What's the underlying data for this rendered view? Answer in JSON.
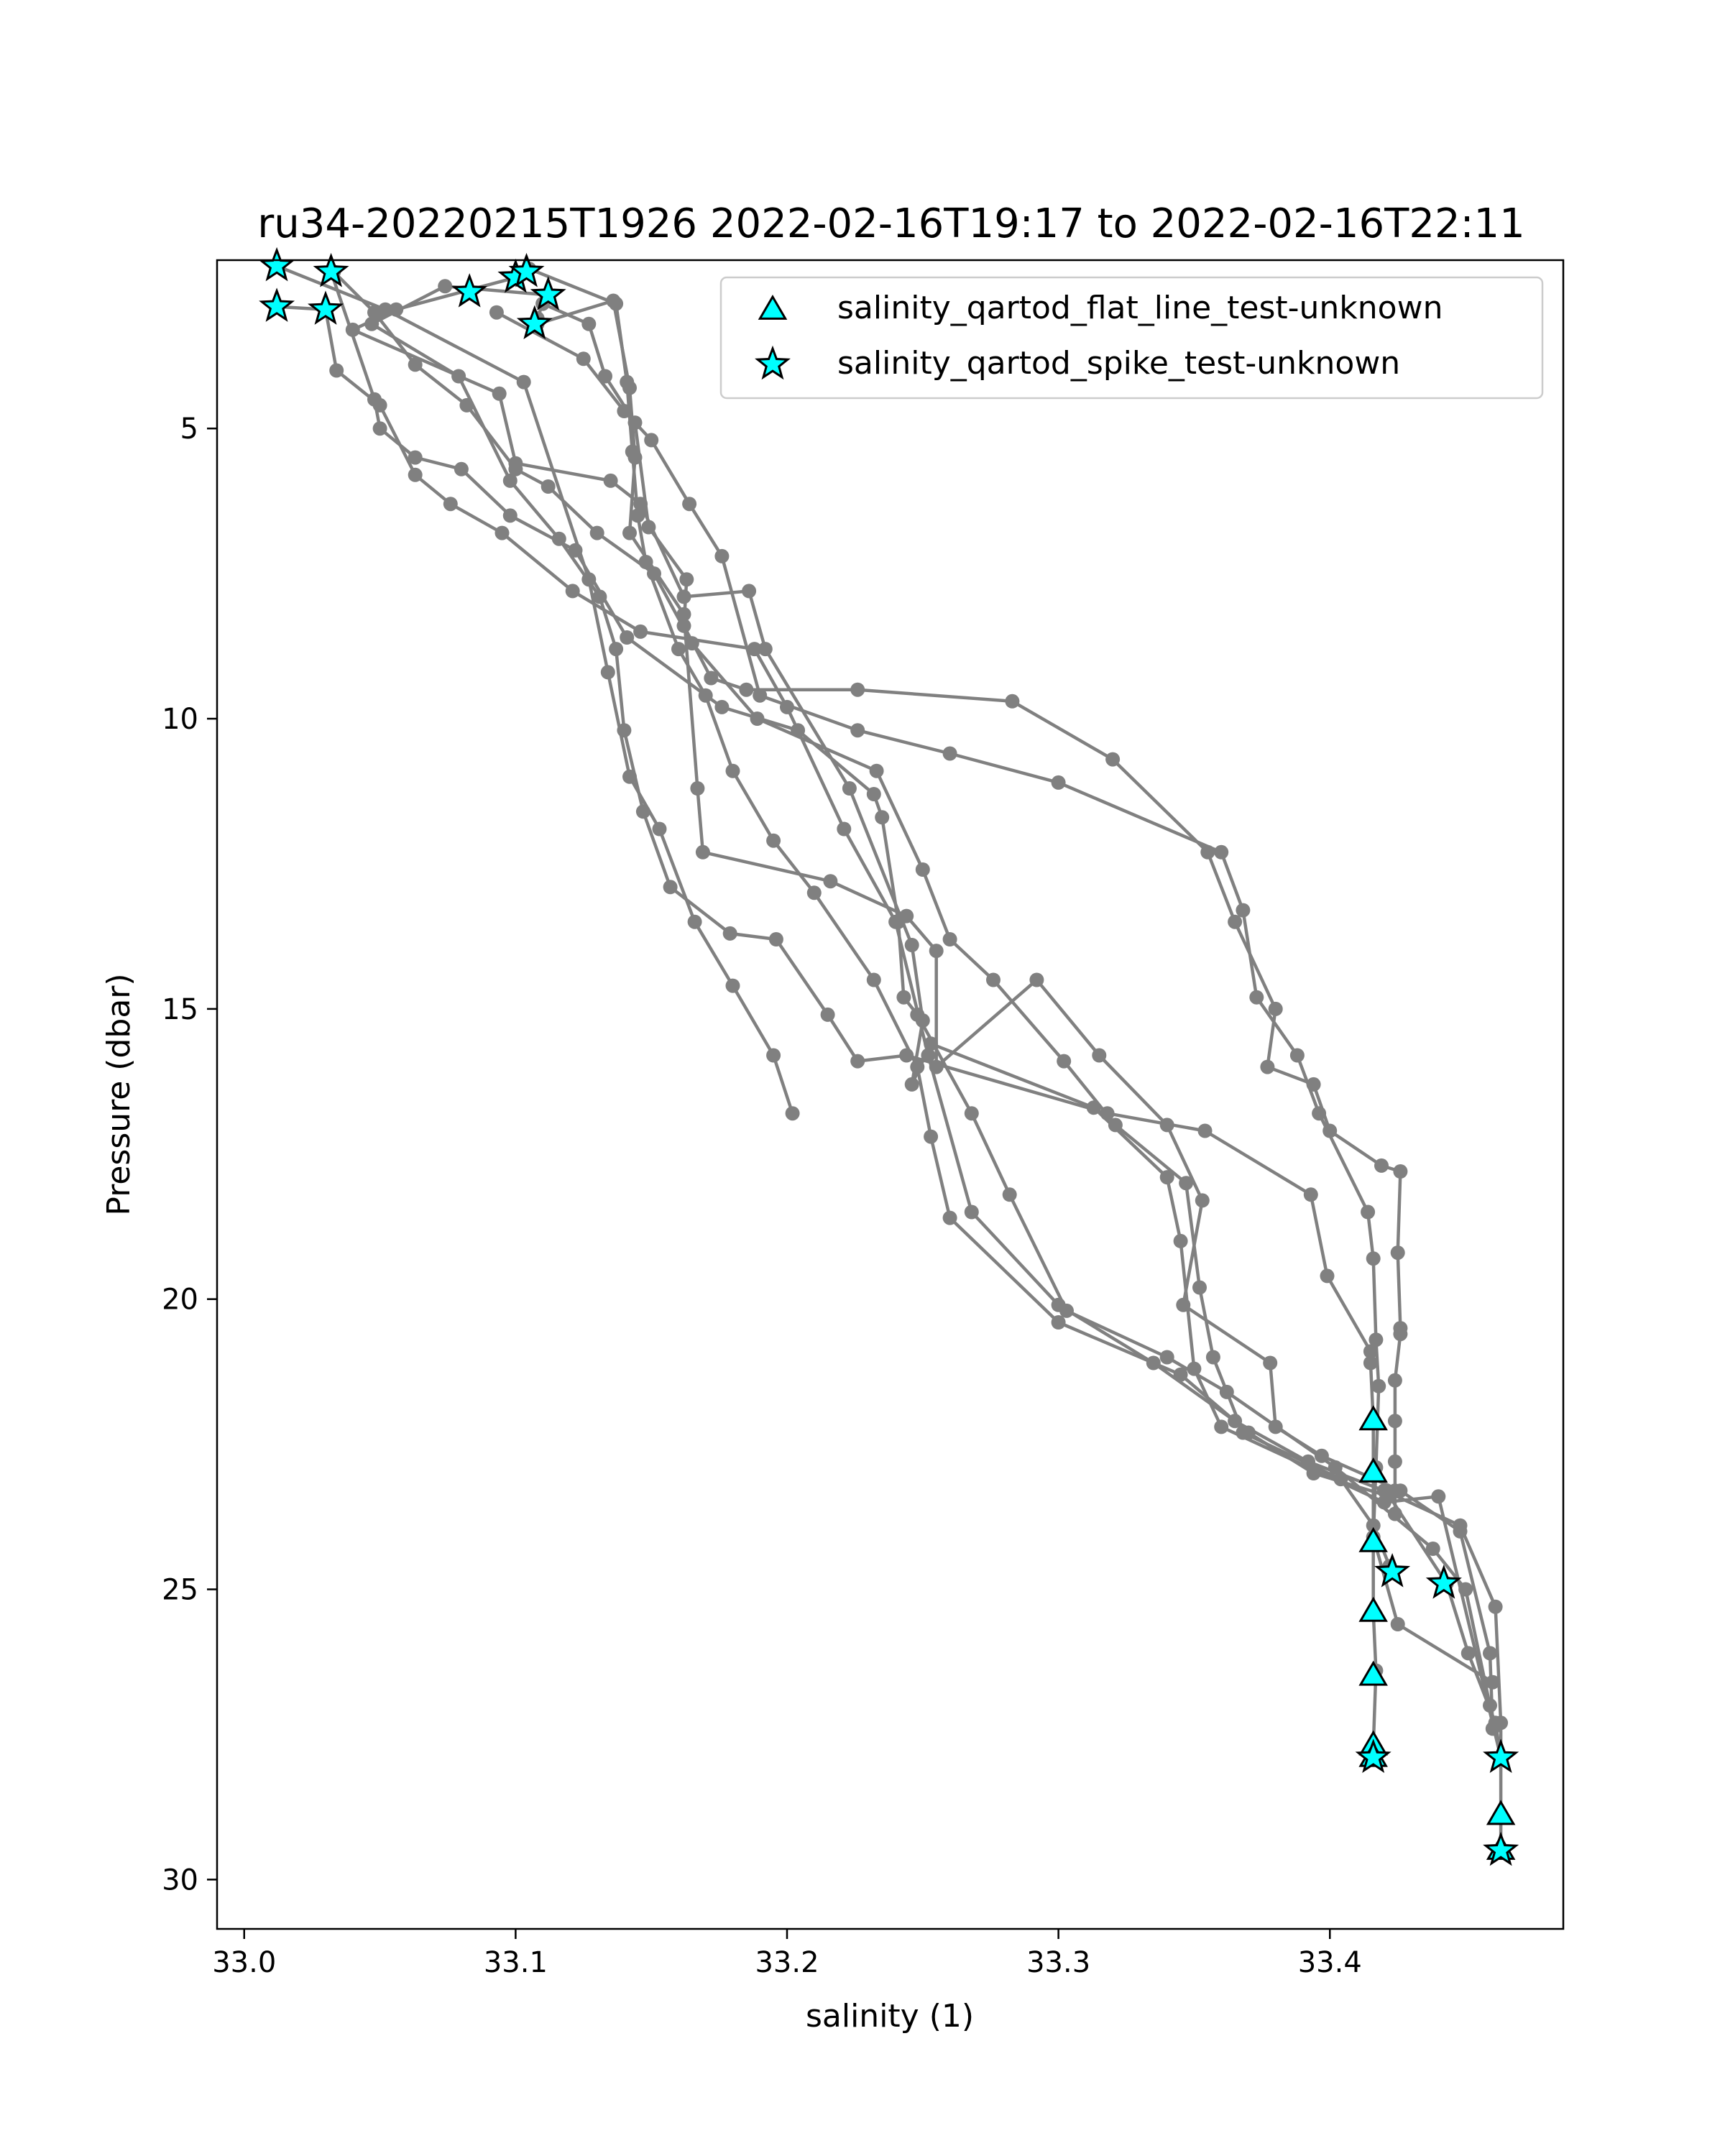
{
  "chart_data": {
    "type": "line",
    "title": "ru34-20220215T1926 2022-02-16T19:17 to 2022-02-16T22:11",
    "xlabel": "salinity (1)",
    "ylabel": "Pressure (dbar)",
    "xlim": [
      32.99,
      33.486
    ],
    "ylim": [
      30.85,
      2.1
    ],
    "y_inverted": true,
    "xticks": [
      33.0,
      33.1,
      33.2,
      33.3,
      33.4
    ],
    "xtick_labels": [
      "33.0",
      "33.1",
      "33.2",
      "33.3",
      "33.4"
    ],
    "yticks": [
      5,
      10,
      15,
      20,
      25,
      30
    ],
    "ytick_labels": [
      "5",
      "10",
      "15",
      "20",
      "25",
      "30"
    ],
    "grid": false,
    "legend_placement": "top-right",
    "colors": {
      "profile": "#808080",
      "flag_fill": "#00ffff",
      "flag_edge": "#000000"
    },
    "profiles": [
      {
        "points": [
          [
            33.012,
            2.2
          ],
          [
            33.052,
            2.95
          ],
          [
            33.103,
            4.2
          ],
          [
            33.127,
            7.6
          ],
          [
            33.134,
            9.2
          ],
          [
            33.142,
            11.0
          ],
          [
            33.153,
            11.9
          ],
          [
            33.166,
            13.5
          ],
          [
            33.18,
            14.6
          ],
          [
            33.195,
            15.8
          ],
          [
            33.202,
            16.8
          ]
        ]
      },
      {
        "points": [
          [
            33.105,
            2.25
          ],
          [
            33.137,
            2.85
          ],
          [
            33.141,
            4.2
          ],
          [
            33.143,
            5.4
          ],
          [
            33.145,
            6.5
          ],
          [
            33.148,
            7.3
          ],
          [
            33.16,
            8.8
          ],
          [
            33.17,
            9.6
          ],
          [
            33.18,
            10.9
          ],
          [
            33.195,
            12.1
          ],
          [
            33.21,
            13.0
          ],
          [
            33.232,
            14.5
          ],
          [
            33.248,
            16.0
          ],
          [
            33.253,
            17.2
          ],
          [
            33.26,
            18.6
          ],
          [
            33.3,
            20.4
          ],
          [
            33.345,
            21.3
          ],
          [
            33.37,
            22.3
          ],
          [
            33.394,
            23.0
          ],
          [
            33.422,
            23.4
          ],
          [
            33.443,
            24.9
          ],
          [
            33.451,
            26.1
          ],
          [
            33.461,
            27.3
          ],
          [
            33.463,
            27.9
          ]
        ]
      },
      {
        "points": [
          [
            33.032,
            2.3
          ],
          [
            33.048,
            4.5
          ],
          [
            33.05,
            5.0
          ],
          [
            33.063,
            5.5
          ],
          [
            33.08,
            5.7
          ],
          [
            33.098,
            6.5
          ],
          [
            33.122,
            7.1
          ],
          [
            33.141,
            8.6
          ],
          [
            33.176,
            9.8
          ],
          [
            33.204,
            10.2
          ],
          [
            33.232,
            11.3
          ],
          [
            33.235,
            11.7
          ],
          [
            33.241,
            13.5
          ],
          [
            33.243,
            14.8
          ],
          [
            33.248,
            15.1
          ],
          [
            33.268,
            16.8
          ],
          [
            33.282,
            18.2
          ],
          [
            33.303,
            20.2
          ],
          [
            33.34,
            21.0
          ],
          [
            33.362,
            21.6
          ],
          [
            33.402,
            22.9
          ],
          [
            33.438,
            24.3
          ],
          [
            33.45,
            25.0
          ],
          [
            33.459,
            27.0
          ]
        ]
      },
      {
        "points": [
          [
            33.012,
            2.9
          ],
          [
            33.03,
            2.95
          ],
          [
            33.034,
            4.0
          ],
          [
            33.05,
            4.6
          ],
          [
            33.063,
            5.8
          ],
          [
            33.076,
            6.3
          ],
          [
            33.095,
            6.8
          ],
          [
            33.121,
            7.8
          ],
          [
            33.146,
            8.5
          ],
          [
            33.188,
            8.8
          ],
          [
            33.2,
            9.8
          ],
          [
            33.221,
            11.9
          ],
          [
            33.24,
            13.5
          ],
          [
            33.252,
            15.8
          ],
          [
            33.268,
            18.5
          ],
          [
            33.3,
            20.1
          ],
          [
            33.335,
            21.1
          ],
          [
            33.365,
            22.1
          ],
          [
            33.392,
            22.8
          ],
          [
            33.42,
            23.3
          ],
          [
            33.448,
            23.9
          ],
          [
            33.461,
            25.3
          ],
          [
            33.463,
            27.3
          ],
          [
            33.463,
            28.9
          ],
          [
            33.463,
            29.5
          ]
        ]
      },
      {
        "points": [
          [
            33.033,
            2.3
          ],
          [
            33.048,
            3.0
          ],
          [
            33.063,
            3.9
          ],
          [
            33.082,
            4.6
          ],
          [
            33.1,
            5.7
          ],
          [
            33.112,
            6.0
          ],
          [
            33.13,
            6.8
          ],
          [
            33.151,
            7.5
          ],
          [
            33.165,
            8.7
          ],
          [
            33.189,
            10.0
          ],
          [
            33.233,
            10.9
          ],
          [
            33.25,
            12.6
          ],
          [
            33.26,
            13.8
          ],
          [
            33.276,
            14.5
          ],
          [
            33.302,
            15.9
          ],
          [
            33.321,
            17.0
          ],
          [
            33.347,
            18.0
          ],
          [
            33.352,
            19.8
          ],
          [
            33.357,
            21.0
          ],
          [
            33.368,
            22.3
          ],
          [
            33.404,
            23.1
          ],
          [
            33.416,
            23.9
          ],
          [
            33.422,
            24.6
          ]
        ]
      },
      {
        "points": [
          [
            33.1,
            2.4
          ],
          [
            33.056,
            2.95
          ],
          [
            33.04,
            3.3
          ],
          [
            33.094,
            4.4
          ],
          [
            33.1,
            5.6
          ],
          [
            33.135,
            5.9
          ],
          [
            33.146,
            6.3
          ],
          [
            33.162,
            7.9
          ],
          [
            33.186,
            7.8
          ],
          [
            33.192,
            8.8
          ],
          [
            33.223,
            11.2
          ],
          [
            33.246,
            13.9
          ],
          [
            33.25,
            15.2
          ],
          [
            33.246,
            16.3
          ],
          [
            33.253,
            15.6
          ],
          [
            33.313,
            16.7
          ],
          [
            33.34,
            17.9
          ],
          [
            33.345,
            19.0
          ],
          [
            33.35,
            21.2
          ],
          [
            33.36,
            22.2
          ],
          [
            33.42,
            23.5
          ],
          [
            33.44,
            23.4
          ],
          [
            33.463,
            27.9
          ]
        ]
      },
      {
        "points": [
          [
            33.112,
            2.7
          ],
          [
            33.074,
            2.55
          ],
          [
            33.047,
            3.2
          ],
          [
            33.079,
            4.1
          ],
          [
            33.098,
            5.9
          ],
          [
            33.116,
            6.9
          ],
          [
            33.131,
            7.9
          ],
          [
            33.137,
            8.8
          ],
          [
            33.14,
            10.2
          ],
          [
            33.147,
            11.6
          ],
          [
            33.157,
            12.9
          ],
          [
            33.179,
            13.7
          ],
          [
            33.196,
            13.8
          ],
          [
            33.215,
            15.1
          ],
          [
            33.226,
            15.9
          ],
          [
            33.244,
            15.8
          ],
          [
            33.318,
            16.8
          ],
          [
            33.354,
            17.1
          ],
          [
            33.393,
            18.2
          ],
          [
            33.399,
            19.6
          ],
          [
            33.415,
            20.9
          ],
          [
            33.415,
            21.1
          ],
          [
            33.416,
            22.1
          ],
          [
            33.416,
            23.0
          ],
          [
            33.416,
            24.2
          ],
          [
            33.416,
            25.4
          ],
          [
            33.417,
            26.4
          ],
          [
            33.416,
            27.7
          ],
          [
            33.416,
            27.9
          ]
        ]
      },
      {
        "points": [
          [
            33.108,
            3.2
          ],
          [
            33.136,
            2.8
          ],
          [
            33.142,
            4.3
          ],
          [
            33.144,
            5.5
          ],
          [
            33.142,
            6.8
          ],
          [
            33.162,
            8.2
          ],
          [
            33.167,
            11.2
          ],
          [
            33.169,
            12.3
          ],
          [
            33.216,
            12.8
          ],
          [
            33.244,
            13.4
          ],
          [
            33.255,
            14.0
          ],
          [
            33.255,
            16.0
          ],
          [
            33.292,
            14.5
          ],
          [
            33.315,
            15.8
          ],
          [
            33.34,
            17.0
          ],
          [
            33.353,
            18.3
          ],
          [
            33.346,
            20.1
          ],
          [
            33.378,
            21.1
          ],
          [
            33.38,
            22.2
          ],
          [
            33.397,
            22.7
          ],
          [
            33.426,
            23.3
          ],
          [
            33.448,
            24.0
          ],
          [
            33.459,
            26.1
          ],
          [
            33.46,
            27.4
          ]
        ]
      },
      {
        "points": [
          [
            33.108,
            3.1
          ],
          [
            33.11,
            2.85
          ],
          [
            33.127,
            3.2
          ],
          [
            33.133,
            4.1
          ],
          [
            33.144,
            4.9
          ],
          [
            33.149,
            6.7
          ],
          [
            33.163,
            7.6
          ],
          [
            33.162,
            8.4
          ],
          [
            33.172,
            9.3
          ],
          [
            33.185,
            9.5
          ],
          [
            33.226,
            9.5
          ],
          [
            33.283,
            9.7
          ],
          [
            33.32,
            10.7
          ],
          [
            33.355,
            12.3
          ],
          [
            33.365,
            13.5
          ],
          [
            33.38,
            15.0
          ],
          [
            33.377,
            16.0
          ],
          [
            33.394,
            16.3
          ],
          [
            33.4,
            17.1
          ],
          [
            33.419,
            17.7
          ],
          [
            33.426,
            17.8
          ],
          [
            33.425,
            19.2
          ],
          [
            33.426,
            20.5
          ],
          [
            33.426,
            20.6
          ],
          [
            33.424,
            21.4
          ],
          [
            33.424,
            22.1
          ],
          [
            33.424,
            22.8
          ],
          [
            33.424,
            23.3
          ],
          [
            33.424,
            23.7
          ]
        ]
      },
      {
        "points": [
          [
            33.093,
            3.0
          ],
          [
            33.125,
            3.8
          ],
          [
            33.14,
            4.7
          ],
          [
            33.15,
            5.2
          ],
          [
            33.164,
            6.3
          ],
          [
            33.176,
            7.2
          ],
          [
            33.19,
            9.6
          ],
          [
            33.226,
            10.2
          ],
          [
            33.26,
            10.6
          ],
          [
            33.3,
            11.1
          ],
          [
            33.36,
            12.3
          ],
          [
            33.368,
            13.3
          ],
          [
            33.373,
            14.8
          ],
          [
            33.388,
            15.8
          ],
          [
            33.396,
            16.8
          ],
          [
            33.414,
            18.5
          ],
          [
            33.416,
            19.3
          ],
          [
            33.417,
            20.7
          ],
          [
            33.418,
            21.5
          ],
          [
            33.417,
            22.9
          ],
          [
            33.416,
            24.1
          ],
          [
            33.425,
            25.6
          ],
          [
            33.46,
            26.6
          ]
        ]
      }
    ],
    "series": [
      {
        "name": "salinity_qartod_flat_line_test-unknown",
        "marker": "triangle",
        "points": [
          [
            33.416,
            22.1
          ],
          [
            33.416,
            23.0
          ],
          [
            33.416,
            24.2
          ],
          [
            33.416,
            25.4
          ],
          [
            33.416,
            26.5
          ],
          [
            33.416,
            27.7
          ],
          [
            33.416,
            27.9
          ],
          [
            33.463,
            28.9
          ],
          [
            33.463,
            29.5
          ]
        ]
      },
      {
        "name": "salinity_qartod_spike_test-unknown",
        "marker": "star",
        "points": [
          [
            33.012,
            2.2
          ],
          [
            33.012,
            2.9
          ],
          [
            33.032,
            2.3
          ],
          [
            33.03,
            2.95
          ],
          [
            33.083,
            2.65
          ],
          [
            33.1,
            2.4
          ],
          [
            33.104,
            2.3
          ],
          [
            33.112,
            2.7
          ],
          [
            33.107,
            3.2
          ],
          [
            33.423,
            24.7
          ],
          [
            33.442,
            24.9
          ],
          [
            33.416,
            27.9
          ],
          [
            33.463,
            27.9
          ],
          [
            33.463,
            29.5
          ]
        ]
      }
    ]
  }
}
